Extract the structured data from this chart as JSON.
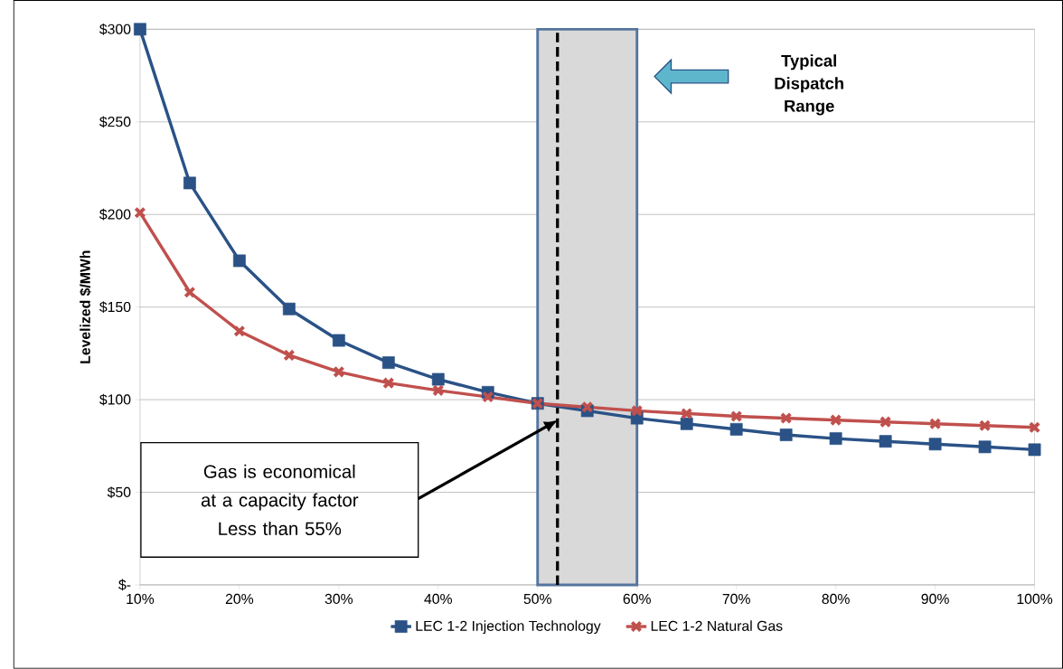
{
  "chart_data": {
    "type": "line",
    "ylabel": "Levelized $/MWh",
    "x": [
      10,
      15,
      20,
      25,
      30,
      35,
      40,
      45,
      50,
      55,
      60,
      65,
      70,
      75,
      80,
      85,
      90,
      95,
      100
    ],
    "series": [
      {
        "name": "LEC 1-2 Injection Technology",
        "color": "#2a5286",
        "marker": "square",
        "values": [
          300,
          217,
          175,
          149,
          132,
          120,
          111,
          104,
          98,
          94,
          90,
          87,
          84,
          81,
          79,
          77.5,
          76,
          74.5,
          73
        ]
      },
      {
        "name": "LEC 1-2 Natural Gas",
        "color": "#c0504d",
        "marker": "cross",
        "values": [
          201,
          158,
          137,
          124,
          115,
          109,
          105,
          101.5,
          98,
          96,
          94,
          92.5,
          91,
          90,
          89,
          88,
          87,
          86,
          85
        ]
      }
    ],
    "xlim": [
      10,
      100
    ],
    "xticks": [
      {
        "value": 10,
        "label": "10%"
      },
      {
        "value": 20,
        "label": "20%"
      },
      {
        "value": 30,
        "label": "30%"
      },
      {
        "value": 40,
        "label": "40%"
      },
      {
        "value": 50,
        "label": "50%"
      },
      {
        "value": 60,
        "label": "60%"
      },
      {
        "value": 70,
        "label": "70%"
      },
      {
        "value": 80,
        "label": "80%"
      },
      {
        "value": 90,
        "label": "90%"
      },
      {
        "value": 100,
        "label": "100%"
      }
    ],
    "ylim": [
      0,
      300
    ],
    "yticks": [
      {
        "value": 0,
        "label": "$-"
      },
      {
        "value": 50,
        "label": "$50"
      },
      {
        "value": 100,
        "label": "$100"
      },
      {
        "value": 150,
        "label": "$150"
      },
      {
        "value": 200,
        "label": "$200"
      },
      {
        "value": 250,
        "label": "$250"
      },
      {
        "value": 300,
        "label": "$300"
      }
    ],
    "bands": [
      {
        "axis": "x",
        "from": 50,
        "to": 60,
        "color": "#d9d9d9"
      }
    ],
    "ref_lines": [
      {
        "axis": "x",
        "value": 52,
        "color": "#000000",
        "line_style": "dashed"
      }
    ],
    "annotations": [
      "Typical Dispatch Range",
      "Gas is economical at a capacity factor Less than 55%"
    ],
    "grid": "y",
    "legend": "bottom",
    "line_style": "solid"
  }
}
